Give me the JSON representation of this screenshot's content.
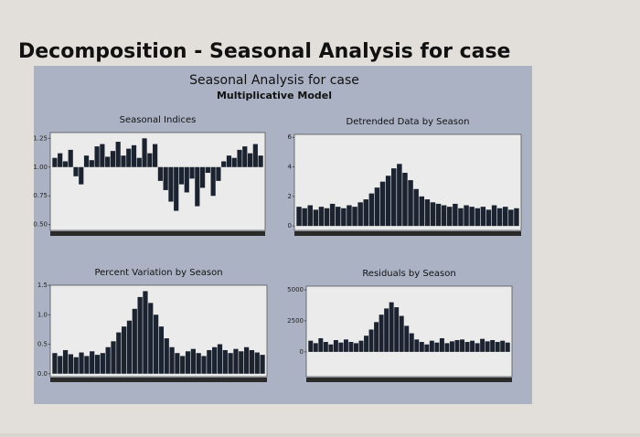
{
  "title": "Decomposition - Seasonal Analysis for case",
  "panel_title": "Seasonal Analysis for case",
  "panel_subtitle": "Multiplicative Model",
  "chart_data": [
    {
      "type": "bar",
      "title": "Seasonal Indices",
      "color": "#1c2330",
      "baseline": 1,
      "ylim": [
        0.45,
        1.3
      ],
      "yticks": [
        {
          "value": 0.5,
          "label": "0.50"
        },
        {
          "value": 0.75,
          "label": "0.75"
        },
        {
          "value": 1,
          "label": "1.00"
        },
        {
          "value": 1.25,
          "label": "1.25"
        }
      ],
      "values": [
        1.08,
        1.12,
        1.05,
        1.15,
        0.92,
        0.85,
        1.1,
        1.06,
        1.18,
        1.2,
        1.09,
        1.14,
        1.22,
        1.1,
        1.16,
        1.19,
        1.08,
        1.25,
        1.12,
        1.2,
        0.88,
        0.8,
        0.7,
        0.62,
        0.85,
        0.78,
        0.9,
        0.66,
        0.82,
        0.95,
        0.75,
        0.88,
        1.05,
        1.1,
        1.08,
        1.15,
        1.18,
        1.12,
        1.2,
        1.1
      ]
    },
    {
      "type": "bar",
      "title": "Detrended Data by Season",
      "color": "#1c2330",
      "ylim": [
        -0.3,
        6.2
      ],
      "yticks": [
        0,
        2,
        4,
        6
      ],
      "values": [
        1.3,
        1.2,
        1.4,
        1.1,
        1.3,
        1.2,
        1.5,
        1.3,
        1.2,
        1.4,
        1.3,
        1.6,
        1.8,
        2.2,
        2.6,
        3.0,
        3.4,
        3.9,
        4.2,
        3.6,
        3.1,
        2.5,
        2.0,
        1.8,
        1.6,
        1.5,
        1.4,
        1.3,
        1.5,
        1.2,
        1.4,
        1.3,
        1.2,
        1.3,
        1.1,
        1.4,
        1.2,
        1.3,
        1.1,
        1.2
      ]
    },
    {
      "type": "bar",
      "title": "Percent Variation by Season",
      "color": "#1c2330",
      "ylim": [
        -0.05,
        1.5
      ],
      "yticks": [
        {
          "value": 0,
          "label": "0.0"
        },
        {
          "value": 0.5,
          "label": "0.5"
        },
        {
          "value": 1,
          "label": "1.0"
        },
        {
          "value": 1.5,
          "label": "1.5"
        }
      ],
      "values": [
        0.35,
        0.3,
        0.4,
        0.33,
        0.28,
        0.36,
        0.3,
        0.38,
        0.32,
        0.35,
        0.45,
        0.55,
        0.7,
        0.8,
        0.9,
        1.1,
        1.3,
        1.4,
        1.2,
        1.0,
        0.8,
        0.6,
        0.45,
        0.35,
        0.3,
        0.38,
        0.42,
        0.35,
        0.3,
        0.4,
        0.45,
        0.5,
        0.4,
        0.35,
        0.42,
        0.38,
        0.45,
        0.4,
        0.36,
        0.32
      ]
    },
    {
      "type": "bar",
      "title": "Residuals by Season",
      "color": "#1c2330",
      "ylim": [
        -2000,
        5300
      ],
      "yticks": [
        0,
        2500,
        5000
      ],
      "values": [
        900,
        700,
        1100,
        800,
        600,
        950,
        750,
        1000,
        800,
        700,
        900,
        1300,
        1800,
        2400,
        3000,
        3500,
        4000,
        3600,
        2900,
        2100,
        1500,
        1000,
        800,
        600,
        900,
        750,
        1100,
        700,
        850,
        950,
        1000,
        800,
        900,
        700,
        1050,
        850,
        950,
        800,
        900,
        750
      ]
    }
  ]
}
